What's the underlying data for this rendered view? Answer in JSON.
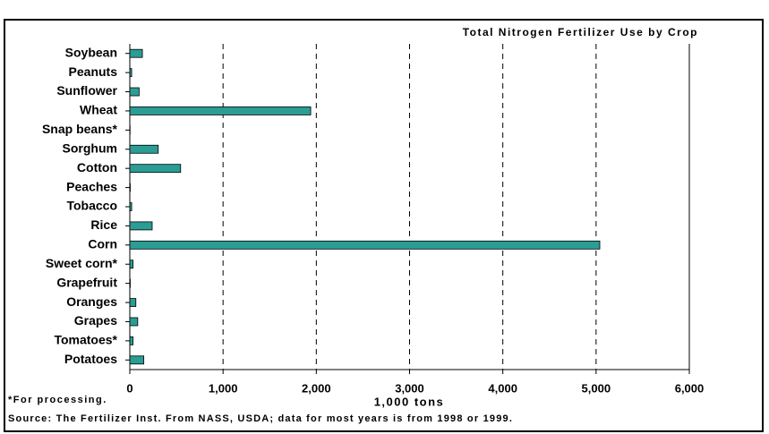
{
  "chart_data": {
    "type": "bar",
    "orientation": "horizontal",
    "title": "Total Nitrogen Fertilizer Use by Crop",
    "x_label": "1,000 tons",
    "footnote": "*For processing.",
    "source": "Source: The Fertilizer Inst. From NASS, USDA; data for most years is from 1998 or 1999.",
    "categories": [
      "Soybean",
      "Peanuts",
      "Sunflower",
      "Wheat",
      "Snap beans*",
      "Sorghum",
      "Cotton",
      "Peaches",
      "Tobacco",
      "Rice",
      "Corn",
      "Sweet corn*",
      "Grapefruit",
      "Oranges",
      "Grapes",
      "Tomatoes*",
      "Potatoes"
    ],
    "values": [
      135,
      20,
      100,
      1940,
      3,
      305,
      545,
      5,
      20,
      240,
      5040,
      35,
      5,
      65,
      85,
      35,
      150
    ],
    "color": "#2a9d94",
    "xlim": [
      0,
      6000
    ],
    "xticks": [
      0,
      {
        "value": 1000,
        "label": "1,000"
      },
      {
        "value": 2000,
        "label": "2,000"
      },
      {
        "value": 3000,
        "label": "3,000"
      },
      {
        "value": 4000,
        "label": "4,000"
      },
      {
        "value": 5000,
        "label": "5,000"
      },
      {
        "value": 6000,
        "label": "6,000"
      }
    ],
    "grid": true
  }
}
